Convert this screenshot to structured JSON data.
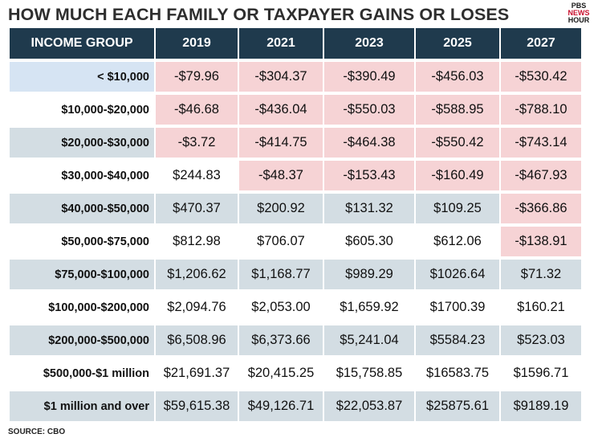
{
  "header": {
    "title": "HOW MUCH EACH FAMILY OR TAXPAYER GAINS OR LOSES",
    "logo_lines": [
      "PBS",
      "NEWS",
      "HOUR"
    ]
  },
  "source": "SOURCE: CBO",
  "colors": {
    "header_bg": "#1f3a4d",
    "loss_cell": "#f6d3d5",
    "shaded_row": "#d3dde3",
    "first_label": "#d6e4f3"
  },
  "chart_data": {
    "type": "table",
    "title": "HOW MUCH EACH FAMILY OR TAXPAYER GAINS OR LOSES",
    "columns": [
      "INCOME GROUP",
      "2019",
      "2021",
      "2023",
      "2025",
      "2027"
    ],
    "rows": [
      {
        "group": "< $10,000",
        "values": [
          "-$79.96",
          "-$304.37",
          "-$390.49",
          "-$456.03",
          "-$530.42"
        ]
      },
      {
        "group": "$10,000-$20,000",
        "values": [
          "-$46.68",
          "-$436.04",
          "-$550.03",
          "-$588.95",
          "-$788.10"
        ]
      },
      {
        "group": "$20,000-$30,000",
        "values": [
          "-$3.72",
          "-$414.75",
          "-$464.38",
          "-$550.42",
          "-$743.14"
        ]
      },
      {
        "group": "$30,000-$40,000",
        "values": [
          "$244.83",
          "-$48.37",
          "-$153.43",
          "-$160.49",
          "-$467.93"
        ]
      },
      {
        "group": "$40,000-$50,000",
        "values": [
          "$470.37",
          "$200.92",
          "$131.32",
          "$109.25",
          "-$366.86"
        ]
      },
      {
        "group": "$50,000-$75,000",
        "values": [
          "$812.98",
          "$706.07",
          "$605.30",
          "$612.06",
          "-$138.91"
        ]
      },
      {
        "group": "$75,000-$100,000",
        "values": [
          "$1,206.62",
          "$1,168.77",
          "$989.29",
          "$1026.64",
          "$71.32"
        ]
      },
      {
        "group": "$100,000-$200,000",
        "values": [
          "$2,094.76",
          "$2,053.00",
          "$1,659.92",
          "$1700.39",
          "$160.21"
        ]
      },
      {
        "group": "$200,000-$500,000",
        "values": [
          "$6,508.96",
          "$6,373.66",
          "$5,241.04",
          "$5584.23",
          "$523.03"
        ]
      },
      {
        "group": "$500,000-$1 million",
        "values": [
          "$21,691.37",
          "$20,415.25",
          "$15,758.85",
          "$16583.75",
          "$1596.71"
        ]
      },
      {
        "group": "$1 million and over",
        "values": [
          "$59,615.38",
          "$49,126.71",
          "$22,053.87",
          "$25875.61",
          "$9189.19"
        ]
      }
    ]
  }
}
